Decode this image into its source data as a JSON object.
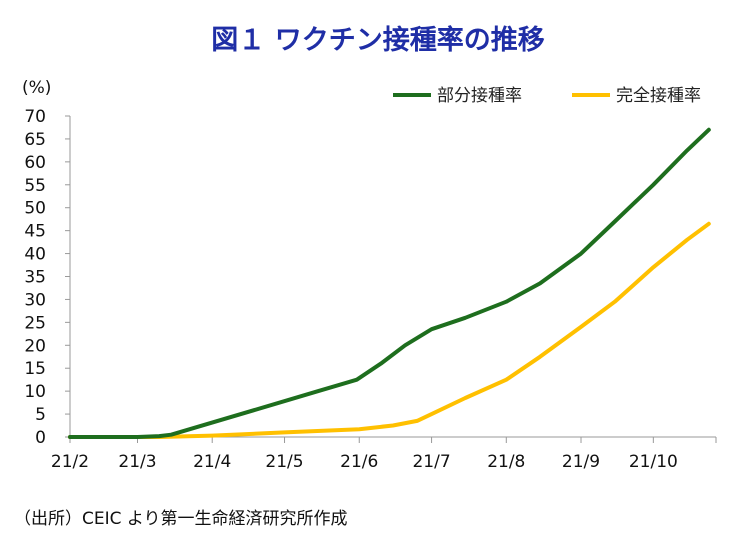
{
  "chart_data": {
    "type": "line",
    "title": "図１ ワクチン接種率の推移",
    "ylabel": "(%)",
    "xlabel": "",
    "ylim": [
      0,
      70
    ],
    "yticks": [
      0,
      5,
      10,
      15,
      20,
      25,
      30,
      35,
      40,
      45,
      50,
      55,
      60,
      65,
      70
    ],
    "xticks": [
      "21/2",
      "21/3",
      "21/4",
      "21/5",
      "21/6",
      "21/7",
      "21/8",
      "21/9",
      "21/10"
    ],
    "grid": false,
    "legend_position": "top-right",
    "series": [
      {
        "name": "部分接種率",
        "color": "#1e6e1e",
        "points": [
          [
            "2021-02-01",
            0
          ],
          [
            "2021-03-01",
            0
          ],
          [
            "2021-03-10",
            0.2
          ],
          [
            "2021-03-15",
            0.5
          ],
          [
            "2021-05-15",
            10.0
          ],
          [
            "2021-05-31",
            12.5
          ],
          [
            "2021-06-10",
            16.0
          ],
          [
            "2021-06-20",
            20.0
          ],
          [
            "2021-07-01",
            23.5
          ],
          [
            "2021-07-15",
            26.0
          ],
          [
            "2021-08-01",
            29.5
          ],
          [
            "2021-08-15",
            33.5
          ],
          [
            "2021-09-01",
            40.0
          ],
          [
            "2021-09-15",
            47.0
          ],
          [
            "2021-10-01",
            55.0
          ],
          [
            "2021-10-15",
            62.5
          ],
          [
            "2021-10-24",
            67.0
          ]
        ]
      },
      {
        "name": "完全接種率",
        "color": "#ffc000",
        "points": [
          [
            "2021-02-01",
            0
          ],
          [
            "2021-03-10",
            0
          ],
          [
            "2021-04-01",
            0.3
          ],
          [
            "2021-05-01",
            1.0
          ],
          [
            "2021-06-01",
            1.7
          ],
          [
            "2021-06-15",
            2.5
          ],
          [
            "2021-06-25",
            3.5
          ],
          [
            "2021-07-01",
            5.0
          ],
          [
            "2021-07-15",
            8.5
          ],
          [
            "2021-08-01",
            12.5
          ],
          [
            "2021-08-15",
            17.5
          ],
          [
            "2021-09-01",
            24.0
          ],
          [
            "2021-09-15",
            29.5
          ],
          [
            "2021-10-01",
            37.0
          ],
          [
            "2021-10-15",
            43.0
          ],
          [
            "2021-10-24",
            46.5
          ]
        ]
      }
    ]
  },
  "source_note": "（出所）CEIC より第一生命経済研究所作成"
}
